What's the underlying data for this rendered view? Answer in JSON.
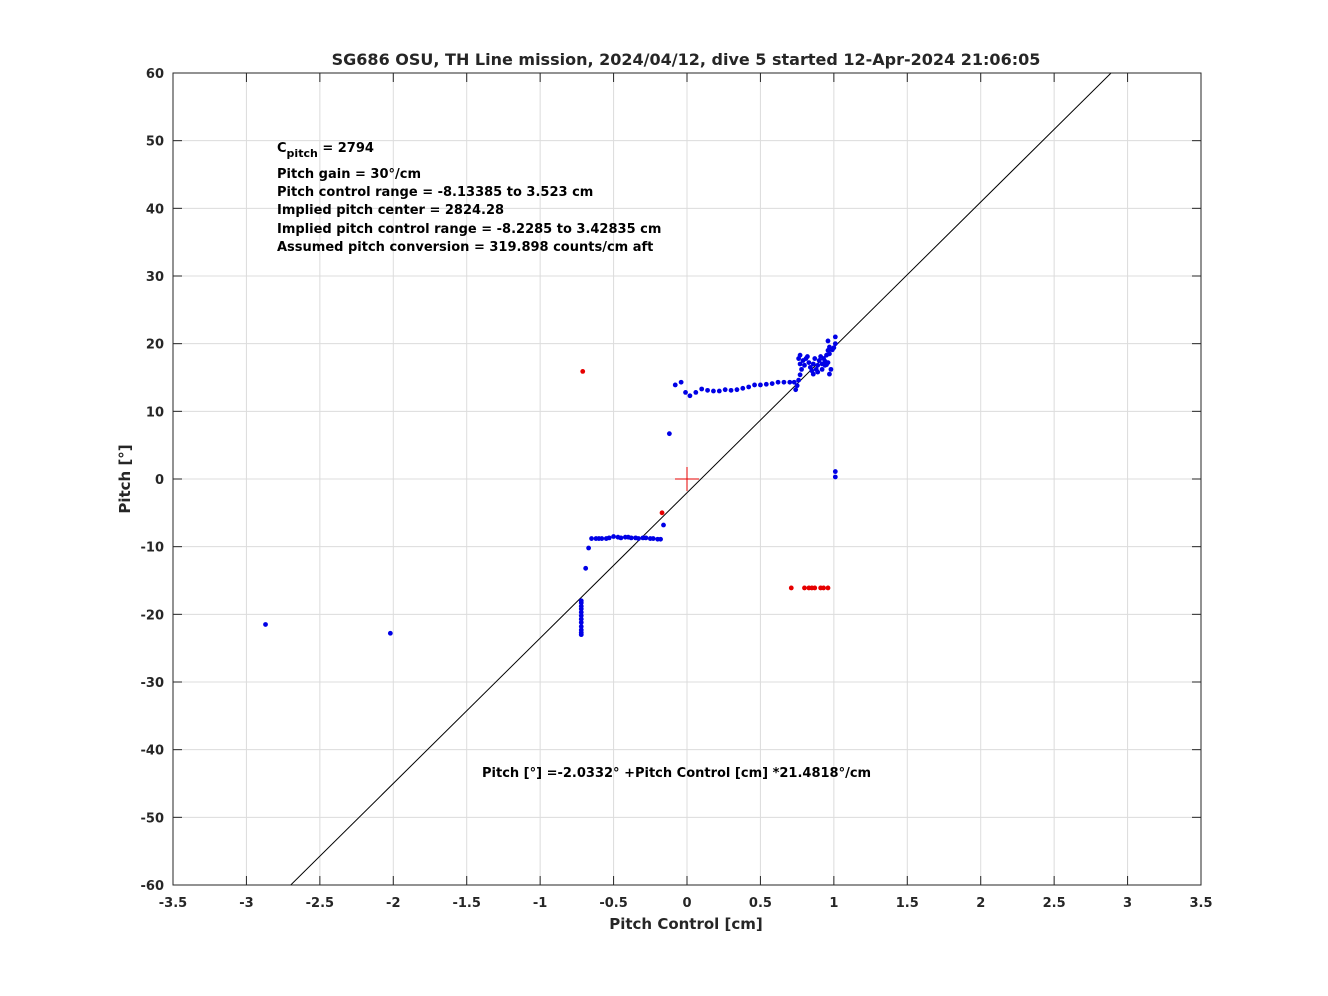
{
  "chart_data": {
    "type": "scatter",
    "title": "SG686 OSU, TH Line mission, 2024/04/12, dive 5 started 12-Apr-2024 21:06:05",
    "xlabel": "Pitch Control [cm]",
    "ylabel": "Pitch [°]",
    "xlim": [
      -3.5,
      3.5
    ],
    "ylim": [
      -60,
      60
    ],
    "grid": true,
    "x_ticks": [
      -3.5,
      -3,
      -2.5,
      -2,
      -1.5,
      -1,
      -0.5,
      0,
      0.5,
      1,
      1.5,
      2,
      2.5,
      3,
      3.5
    ],
    "y_ticks": [
      -60,
      -50,
      -40,
      -30,
      -20,
      -10,
      0,
      10,
      20,
      30,
      40,
      50,
      60
    ],
    "colors": {
      "blue": "#0000e6",
      "red": "#e60000",
      "fit": "#000000",
      "grid": "#dcdcdc",
      "axis": "#262626"
    },
    "fit_line": {
      "intercept": -2.0332,
      "slope": 21.4818
    },
    "center_marker": {
      "x": 0,
      "y": 0,
      "color": "#e60000"
    },
    "annotations": {
      "cpitch_main": "C",
      "cpitch_sub": "pitch",
      "cpitch_value": " = 2794",
      "lines": [
        "Pitch gain = 30°/cm",
        "Pitch control range = -8.13385 to 3.523 cm",
        "Implied pitch center = 2824.28",
        "Implied pitch control range = -8.2285 to 3.42835 cm",
        "Assumed pitch conversion = 319.898 counts/cm aft"
      ],
      "fit_label": "Pitch [°] =-2.0332° +Pitch Control [cm] *21.4818°/cm"
    },
    "series": [
      {
        "color": "blue",
        "points": [
          [
            -2.87,
            -21.5
          ],
          [
            -2.02,
            -22.8
          ],
          [
            -0.72,
            -23.0
          ],
          [
            -0.72,
            -22.7
          ],
          [
            -0.72,
            -22.3
          ],
          [
            -0.72,
            -21.8
          ],
          [
            -0.72,
            -21.2
          ],
          [
            -0.72,
            -20.7
          ],
          [
            -0.72,
            -20.2
          ],
          [
            -0.72,
            -19.7
          ],
          [
            -0.72,
            -19.2
          ],
          [
            -0.72,
            -18.8
          ],
          [
            -0.72,
            -18.3
          ],
          [
            -0.72,
            -18.0
          ],
          [
            -0.69,
            -13.2
          ],
          [
            -0.67,
            -10.2
          ],
          [
            -0.65,
            -8.8
          ],
          [
            -0.62,
            -8.8
          ],
          [
            -0.6,
            -8.8
          ],
          [
            -0.58,
            -8.8
          ],
          [
            -0.55,
            -8.8
          ],
          [
            -0.53,
            -8.7
          ],
          [
            -0.5,
            -8.5
          ],
          [
            -0.47,
            -8.6
          ],
          [
            -0.45,
            -8.7
          ],
          [
            -0.42,
            -8.6
          ],
          [
            -0.4,
            -8.6
          ],
          [
            -0.38,
            -8.7
          ],
          [
            -0.35,
            -8.7
          ],
          [
            -0.33,
            -8.8
          ],
          [
            -0.3,
            -8.7
          ],
          [
            -0.28,
            -8.7
          ],
          [
            -0.25,
            -8.8
          ],
          [
            -0.23,
            -8.8
          ],
          [
            -0.2,
            -8.9
          ],
          [
            -0.18,
            -8.9
          ],
          [
            -0.16,
            -6.8
          ],
          [
            -0.12,
            6.7
          ],
          [
            -0.08,
            13.9
          ],
          [
            -0.04,
            14.3
          ],
          [
            -0.01,
            12.8
          ],
          [
            0.02,
            12.3
          ],
          [
            0.06,
            12.8
          ],
          [
            0.1,
            13.3
          ],
          [
            0.14,
            13.1
          ],
          [
            0.18,
            13.0
          ],
          [
            0.22,
            13.0
          ],
          [
            0.26,
            13.2
          ],
          [
            0.3,
            13.1
          ],
          [
            0.34,
            13.2
          ],
          [
            0.38,
            13.4
          ],
          [
            0.42,
            13.6
          ],
          [
            0.46,
            13.9
          ],
          [
            0.5,
            13.9
          ],
          [
            0.54,
            14.0
          ],
          [
            0.58,
            14.1
          ],
          [
            0.62,
            14.3
          ],
          [
            0.66,
            14.3
          ],
          [
            0.7,
            14.3
          ],
          [
            0.73,
            14.3
          ],
          [
            0.74,
            13.2
          ],
          [
            0.75,
            13.8
          ],
          [
            0.76,
            14.6
          ],
          [
            0.77,
            15.4
          ],
          [
            0.78,
            16.2
          ],
          [
            0.77,
            17.0
          ],
          [
            0.76,
            17.8
          ],
          [
            0.77,
            18.3
          ],
          [
            0.79,
            17.5
          ],
          [
            0.8,
            16.8
          ],
          [
            0.81,
            17.8
          ],
          [
            0.82,
            18.1
          ],
          [
            0.83,
            17.2
          ],
          [
            0.84,
            16.5
          ],
          [
            0.85,
            16.0
          ],
          [
            0.86,
            17.0
          ],
          [
            0.87,
            17.8
          ],
          [
            0.86,
            15.5
          ],
          [
            0.88,
            16.2
          ],
          [
            0.89,
            15.8
          ],
          [
            0.89,
            16.8
          ],
          [
            0.9,
            17.5
          ],
          [
            0.91,
            18.1
          ],
          [
            0.92,
            17.0
          ],
          [
            0.92,
            16.2
          ],
          [
            0.93,
            17.8
          ],
          [
            0.94,
            16.8
          ],
          [
            0.94,
            17.4
          ],
          [
            0.95,
            16.9
          ],
          [
            0.95,
            18.3
          ],
          [
            0.96,
            17.2
          ],
          [
            0.96,
            19.0
          ],
          [
            0.97,
            18.5
          ],
          [
            0.97,
            19.5
          ],
          [
            0.96,
            20.4
          ],
          [
            0.97,
            15.5
          ],
          [
            0.98,
            16.2
          ],
          [
            0.99,
            19.1
          ],
          [
            1.0,
            19.4
          ],
          [
            1.01,
            20.0
          ],
          [
            1.01,
            21.0
          ],
          [
            1.01,
            1.1
          ],
          [
            1.01,
            0.3
          ]
        ]
      },
      {
        "color": "red",
        "points": [
          [
            -0.71,
            15.9
          ],
          [
            -0.17,
            -5.0
          ],
          [
            0.71,
            -16.1
          ],
          [
            0.8,
            -16.1
          ],
          [
            0.83,
            -16.1
          ],
          [
            0.85,
            -16.1
          ],
          [
            0.87,
            -16.1
          ],
          [
            0.91,
            -16.1
          ],
          [
            0.93,
            -16.1
          ],
          [
            0.96,
            -16.1
          ]
        ]
      }
    ]
  }
}
